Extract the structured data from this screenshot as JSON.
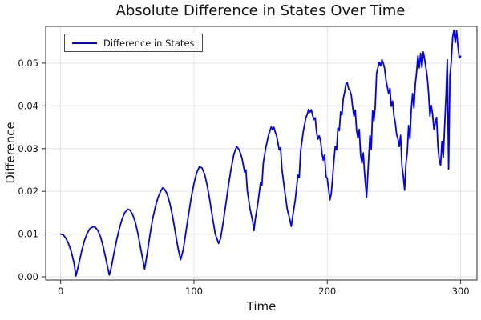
{
  "chart_data": {
    "type": "line",
    "title": "Absolute Difference in States Over Time",
    "xlabel": "Time",
    "ylabel": "Difference",
    "legend_position": "top-left",
    "grid": true,
    "background": "#ffffff",
    "grid_color": "#e4e4e4",
    "frame_color": "#2e2e2e",
    "text_color": "#131313",
    "xlim": [
      -11.2,
      312.3
    ],
    "ylim": [
      -0.00075,
      0.0586
    ],
    "x_ticks": [
      0,
      100,
      200,
      300
    ],
    "x_tick_labels": [
      "0",
      "100",
      "200",
      "300"
    ],
    "y_ticks": [
      0,
      0.01,
      0.02,
      0.03,
      0.04,
      0.05
    ],
    "y_tick_labels": [
      "0.00",
      "0.01",
      "0.02",
      "0.03",
      "0.04",
      "0.05"
    ],
    "series": [
      {
        "name": "Difference in States",
        "color": "#0000ff",
        "points": [
          [
            0,
            0.01
          ],
          [
            2,
            0.0098
          ],
          [
            4,
            0.009
          ],
          [
            6,
            0.0077
          ],
          [
            8,
            0.0059
          ],
          [
            10,
            0.0033
          ],
          [
            11.5,
            0.0002
          ],
          [
            14,
            0.0035
          ],
          [
            16,
            0.0063
          ],
          [
            18,
            0.0086
          ],
          [
            20,
            0.0102
          ],
          [
            22,
            0.0113
          ],
          [
            24.5,
            0.0117
          ],
          [
            26,
            0.0116
          ],
          [
            28,
            0.0108
          ],
          [
            30,
            0.0093
          ],
          [
            32,
            0.007
          ],
          [
            34,
            0.0041
          ],
          [
            36.5,
            0.0004
          ],
          [
            38,
            0.0022
          ],
          [
            40,
            0.0055
          ],
          [
            42,
            0.0086
          ],
          [
            44,
            0.0112
          ],
          [
            46,
            0.0134
          ],
          [
            48,
            0.015
          ],
          [
            50.5,
            0.0158
          ],
          [
            52,
            0.0156
          ],
          [
            54,
            0.0146
          ],
          [
            56,
            0.0128
          ],
          [
            58,
            0.0101
          ],
          [
            60,
            0.0067
          ],
          [
            63,
            0.0018
          ],
          [
            65,
            0.0056
          ],
          [
            67,
            0.0098
          ],
          [
            69,
            0.0135
          ],
          [
            71,
            0.0163
          ],
          [
            73,
            0.0185
          ],
          [
            75,
            0.02
          ],
          [
            76.5,
            0.0208
          ],
          [
            78,
            0.0205
          ],
          [
            80,
            0.0193
          ],
          [
            82,
            0.0171
          ],
          [
            84,
            0.0141
          ],
          [
            86,
            0.0105
          ],
          [
            88,
            0.0068
          ],
          [
            90,
            0.004
          ],
          [
            92,
            0.0064
          ],
          [
            94,
            0.0105
          ],
          [
            96,
            0.0147
          ],
          [
            98,
            0.0186
          ],
          [
            100,
            0.0218
          ],
          [
            102,
            0.0243
          ],
          [
            104,
            0.0257
          ],
          [
            106,
            0.0255
          ],
          [
            108,
            0.024
          ],
          [
            110,
            0.0213
          ],
          [
            112,
            0.0177
          ],
          [
            114,
            0.0137
          ],
          [
            116,
            0.01
          ],
          [
            118.5,
            0.0078
          ],
          [
            120,
            0.009
          ],
          [
            122,
            0.0129
          ],
          [
            124,
            0.0172
          ],
          [
            126,
            0.0216
          ],
          [
            128,
            0.0255
          ],
          [
            130,
            0.0287
          ],
          [
            132,
            0.0305
          ],
          [
            134,
            0.0297
          ],
          [
            135,
            0.0288
          ],
          [
            136,
            0.0278
          ],
          [
            138,
            0.0245
          ],
          [
            139,
            0.025
          ],
          [
            140,
            0.0203
          ],
          [
            142,
            0.016
          ],
          [
            144,
            0.0131
          ],
          [
            145,
            0.0108
          ],
          [
            146,
            0.0135
          ],
          [
            148,
            0.0173
          ],
          [
            150,
            0.0221
          ],
          [
            151,
            0.0215
          ],
          [
            152,
            0.0266
          ],
          [
            154,
            0.0304
          ],
          [
            156,
            0.0332
          ],
          [
            158,
            0.0351
          ],
          [
            159,
            0.0344
          ],
          [
            160,
            0.035
          ],
          [
            161,
            0.0338
          ],
          [
            162,
            0.033
          ],
          [
            164,
            0.0297
          ],
          [
            165,
            0.0302
          ],
          [
            166,
            0.0252
          ],
          [
            168,
            0.0203
          ],
          [
            170,
            0.0158
          ],
          [
            172,
            0.0133
          ],
          [
            173,
            0.0118
          ],
          [
            174,
            0.014
          ],
          [
            176,
            0.018
          ],
          [
            178,
            0.0238
          ],
          [
            179,
            0.0232
          ],
          [
            180,
            0.0294
          ],
          [
            182,
            0.034
          ],
          [
            184,
            0.0373
          ],
          [
            185,
            0.038
          ],
          [
            186,
            0.0392
          ],
          [
            187,
            0.0385
          ],
          [
            188,
            0.0391
          ],
          [
            189,
            0.0378
          ],
          [
            190,
            0.0368
          ],
          [
            191,
            0.0372
          ],
          [
            192,
            0.0338
          ],
          [
            193,
            0.0322
          ],
          [
            194,
            0.033
          ],
          [
            195,
            0.0317
          ],
          [
            196,
            0.029
          ],
          [
            197,
            0.0273
          ],
          [
            198,
            0.0285
          ],
          [
            199,
            0.0236
          ],
          [
            200,
            0.023
          ],
          [
            201,
            0.0205
          ],
          [
            202,
            0.018
          ],
          [
            203,
            0.0195
          ],
          [
            204,
            0.0231
          ],
          [
            205,
            0.0273
          ],
          [
            206,
            0.0305
          ],
          [
            207,
            0.0297
          ],
          [
            208,
            0.0348
          ],
          [
            209,
            0.0342
          ],
          [
            210,
            0.0386
          ],
          [
            211,
            0.0379
          ],
          [
            212,
            0.0417
          ],
          [
            213,
            0.0432
          ],
          [
            214,
            0.0451
          ],
          [
            215,
            0.0454
          ],
          [
            216,
            0.044
          ],
          [
            217,
            0.0436
          ],
          [
            218,
            0.0425
          ],
          [
            219,
            0.0398
          ],
          [
            220,
            0.0376
          ],
          [
            221,
            0.039
          ],
          [
            222,
            0.0342
          ],
          [
            223,
            0.0325
          ],
          [
            224,
            0.0345
          ],
          [
            225,
            0.0286
          ],
          [
            226,
            0.0266
          ],
          [
            227,
            0.029
          ],
          [
            228,
            0.0242
          ],
          [
            229.5,
            0.0186
          ],
          [
            231,
            0.0273
          ],
          [
            232,
            0.033
          ],
          [
            233,
            0.0298
          ],
          [
            234,
            0.0389
          ],
          [
            235,
            0.0365
          ],
          [
            236,
            0.04
          ],
          [
            237,
            0.0476
          ],
          [
            238,
            0.049
          ],
          [
            239,
            0.0502
          ],
          [
            240,
            0.0494
          ],
          [
            241,
            0.0508
          ],
          [
            242,
            0.05
          ],
          [
            243,
            0.0488
          ],
          [
            244,
            0.0461
          ],
          [
            245,
            0.0445
          ],
          [
            246,
            0.0429
          ],
          [
            247,
            0.0441
          ],
          [
            248,
            0.0399
          ],
          [
            249,
            0.0411
          ],
          [
            250,
            0.0377
          ],
          [
            251,
            0.0361
          ],
          [
            252,
            0.0333
          ],
          [
            253,
            0.0323
          ],
          [
            254,
            0.0305
          ],
          [
            255,
            0.0331
          ],
          [
            256,
            0.026
          ],
          [
            257,
            0.0236
          ],
          [
            258,
            0.0203
          ],
          [
            259,
            0.0265
          ],
          [
            260,
            0.0292
          ],
          [
            261,
            0.0354
          ],
          [
            262,
            0.0323
          ],
          [
            263,
            0.0392
          ],
          [
            264,
            0.0429
          ],
          [
            265,
            0.0395
          ],
          [
            266,
            0.045
          ],
          [
            267,
            0.0479
          ],
          [
            268,
            0.0517
          ],
          [
            269,
            0.0489
          ],
          [
            270,
            0.0523
          ],
          [
            271,
            0.049
          ],
          [
            272,
            0.0526
          ],
          [
            273,
            0.051
          ],
          [
            274,
            0.0489
          ],
          [
            275,
            0.0467
          ],
          [
            276,
            0.043
          ],
          [
            277,
            0.0376
          ],
          [
            278,
            0.0401
          ],
          [
            279,
            0.038
          ],
          [
            280,
            0.0345
          ],
          [
            281,
            0.036
          ],
          [
            282,
            0.0373
          ],
          [
            283,
            0.0305
          ],
          [
            284,
            0.0273
          ],
          [
            285,
            0.0261
          ],
          [
            286,
            0.0317
          ],
          [
            287,
            0.028
          ],
          [
            288,
            0.0351
          ],
          [
            289,
            0.042
          ],
          [
            290,
            0.0508
          ],
          [
            291,
            0.0252
          ],
          [
            292,
            0.047
          ],
          [
            293,
            0.0504
          ],
          [
            294,
            0.056
          ],
          [
            295,
            0.0577
          ],
          [
            296,
            0.0548
          ],
          [
            297,
            0.0576
          ],
          [
            298,
            0.054
          ],
          [
            299,
            0.0512
          ],
          [
            300,
            0.0516
          ]
        ]
      }
    ],
    "legend_label": "Difference in States"
  }
}
